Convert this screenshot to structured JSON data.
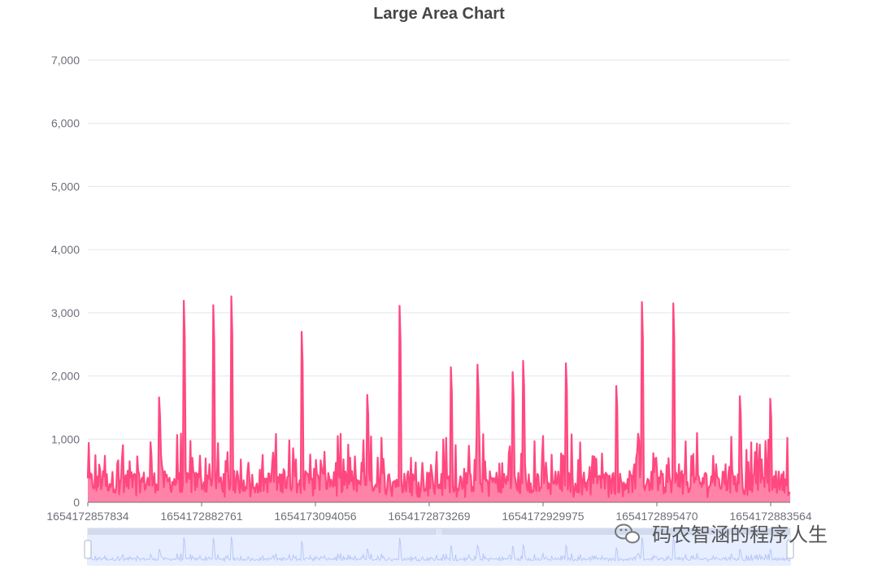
{
  "chart_data": {
    "type": "area",
    "title": "Large Area Chart",
    "xlabel": "",
    "ylabel": "",
    "ylim": [
      0,
      7000
    ],
    "y_ticks": [
      0,
      1000,
      2000,
      3000,
      4000,
      5000,
      6000,
      7000
    ],
    "y_tick_labels": [
      "0",
      "1,000",
      "2,000",
      "3,000",
      "4,000",
      "5,000",
      "6,000",
      "7,000"
    ],
    "x_tick_labels": [
      "1654172857834",
      "1654172882761",
      "1654173094056",
      "1654172873269",
      "1654172929975",
      "1654172895470",
      "1654172883564"
    ],
    "point_count": 740,
    "baseline_range": [
      150,
      500
    ],
    "peaks": [
      {
        "at": 0.136,
        "value": 3190
      },
      {
        "at": 0.178,
        "value": 3120
      },
      {
        "at": 0.204,
        "value": 3260
      },
      {
        "at": 0.304,
        "value": 2700
      },
      {
        "at": 0.444,
        "value": 3110
      },
      {
        "at": 0.517,
        "value": 2140
      },
      {
        "at": 0.555,
        "value": 2180
      },
      {
        "at": 0.605,
        "value": 2060
      },
      {
        "at": 0.62,
        "value": 2240
      },
      {
        "at": 0.681,
        "value": 2200
      },
      {
        "at": 0.752,
        "value": 1840
      },
      {
        "at": 0.789,
        "value": 3170
      },
      {
        "at": 0.833,
        "value": 3150
      },
      {
        "at": 0.102,
        "value": 1660
      },
      {
        "at": 0.398,
        "value": 1700
      },
      {
        "at": 0.928,
        "value": 1680
      },
      {
        "at": 0.971,
        "value": 1640
      }
    ],
    "line_color": "#ff4880",
    "area_color": "#ff83a8",
    "grid": true,
    "legend": "none",
    "data_zoom": {
      "start": 0,
      "end": 100
    }
  },
  "colors": {
    "axis": "#6e7079",
    "grid": "#e0e6f1",
    "zoom_fill": "#e7eeff",
    "zoom_border": "#d2dbee",
    "zoom_line": "#b8c8f5"
  },
  "watermark": "码农智涵的程序人生"
}
